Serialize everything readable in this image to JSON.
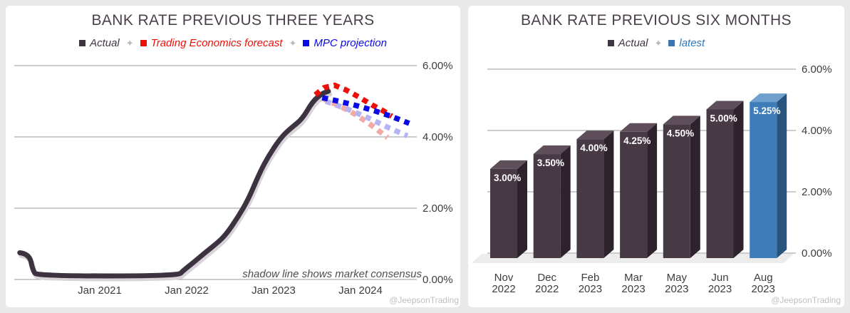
{
  "left_panel": {
    "title": "BANK RATE PREVIOUS THREE YEARS",
    "legend": [
      {
        "label": "Actual",
        "marker_color": "#3f3542",
        "text_color": "#3f3542"
      },
      {
        "label": "Trading Economics forecast",
        "marker_color": "#ee1008",
        "text_color": "#ee1008"
      },
      {
        "label": "MPC projection",
        "marker_color": "#0a0ae6",
        "text_color": "#0a0ae6"
      }
    ],
    "annotation": "shadow line shows market consensus",
    "watermark": "@JeepsonTrading"
  },
  "right_panel": {
    "title": "BANK RATE PREVIOUS SIX MONTHS",
    "legend": [
      {
        "label": "Actual",
        "marker_color": "#3f3542",
        "text_color": "#3f3542"
      },
      {
        "label": "latest",
        "marker_color": "#3d76ae",
        "text_color": "#2e79bb"
      }
    ],
    "watermark": "@JeepsonTrading"
  },
  "chart_data": [
    {
      "type": "line",
      "title": "BANK RATE PREVIOUS THREE YEARS",
      "xlabel": "",
      "ylabel": "",
      "xlim": [
        2020.05,
        2024.8
      ],
      "ylim": [
        0,
        6.5
      ],
      "grid": true,
      "y_ticks": [
        {
          "v": 0,
          "label": "0.00%"
        },
        {
          "v": 2,
          "label": "2.00%"
        },
        {
          "v": 4,
          "label": "4.00%"
        },
        {
          "v": 6,
          "label": "6.00%"
        }
      ],
      "x_ticks": [
        {
          "t": 2021.0,
          "label": "Jan 2021"
        },
        {
          "t": 2022.0,
          "label": "Jan 2022"
        },
        {
          "t": 2023.0,
          "label": "Jan 2023"
        },
        {
          "t": 2024.0,
          "label": "Jan 2024"
        }
      ],
      "series": [
        {
          "name": "Actual shadow (market consensus)",
          "style": "solid",
          "color": "#d8d3d8",
          "points": [
            [
              2020.08,
              0.75
            ],
            [
              2020.19,
              0.72
            ],
            [
              2020.23,
              0.25
            ],
            [
              2020.28,
              0.1
            ],
            [
              2021.9,
              0.1
            ],
            [
              2021.96,
              0.25
            ],
            [
              2022.09,
              0.5
            ],
            [
              2022.21,
              0.75
            ],
            [
              2022.34,
              1.0
            ],
            [
              2022.45,
              1.25
            ],
            [
              2022.59,
              1.75
            ],
            [
              2022.71,
              2.25
            ],
            [
              2022.84,
              3.0
            ],
            [
              2022.95,
              3.5
            ],
            [
              2023.09,
              4.0
            ],
            [
              2023.2,
              4.25
            ],
            [
              2023.33,
              4.5
            ],
            [
              2023.45,
              5.0
            ],
            [
              2023.56,
              5.22
            ],
            [
              2023.63,
              5.28
            ]
          ]
        },
        {
          "name": "Actual",
          "style": "solid",
          "color": "#3d3240",
          "points": [
            [
              2020.08,
              0.75
            ],
            [
              2020.19,
              0.72
            ],
            [
              2020.23,
              0.25
            ],
            [
              2020.28,
              0.1
            ],
            [
              2021.9,
              0.1
            ],
            [
              2021.96,
              0.25
            ],
            [
              2022.09,
              0.5
            ],
            [
              2022.21,
              0.75
            ],
            [
              2022.34,
              1.0
            ],
            [
              2022.45,
              1.25
            ],
            [
              2022.59,
              1.75
            ],
            [
              2022.71,
              2.25
            ],
            [
              2022.84,
              3.0
            ],
            [
              2022.95,
              3.5
            ],
            [
              2023.09,
              4.0
            ],
            [
              2023.2,
              4.25
            ],
            [
              2023.33,
              4.5
            ],
            [
              2023.45,
              5.0
            ],
            [
              2023.56,
              5.22
            ],
            [
              2023.63,
              5.28
            ]
          ]
        },
        {
          "name": "Trading Economics forecast shadow (market consensus)",
          "style": "dashed",
          "color": "#f3aaa6",
          "points": [
            [
              2023.56,
              5.08
            ],
            [
              2023.75,
              4.88
            ],
            [
              2023.95,
              4.62
            ],
            [
              2024.13,
              4.32
            ],
            [
              2024.31,
              3.98
            ]
          ]
        },
        {
          "name": "MPC projection shadow (market consensus)",
          "style": "dashed",
          "color": "#b5b5f3",
          "points": [
            [
              2023.6,
              5.0
            ],
            [
              2023.85,
              4.78
            ],
            [
              2024.1,
              4.52
            ],
            [
              2024.33,
              4.25
            ],
            [
              2024.54,
              4.03
            ]
          ]
        },
        {
          "name": "Trading Economics forecast",
          "style": "dashed",
          "color": "#ee1008",
          "points": [
            [
              2023.48,
              5.18
            ],
            [
              2023.58,
              5.38
            ],
            [
              2023.7,
              5.45
            ],
            [
              2023.83,
              5.32
            ],
            [
              2023.98,
              5.12
            ],
            [
              2024.13,
              4.9
            ],
            [
              2024.27,
              4.72
            ],
            [
              2024.36,
              4.58
            ]
          ]
        },
        {
          "name": "MPC projection",
          "style": "dashed",
          "color": "#0a0ae6",
          "points": [
            [
              2023.56,
              5.1
            ],
            [
              2023.75,
              5.0
            ],
            [
              2023.95,
              4.88
            ],
            [
              2024.15,
              4.74
            ],
            [
              2024.35,
              4.58
            ],
            [
              2024.56,
              4.38
            ]
          ]
        }
      ],
      "annotation": "shadow line shows market consensus",
      "legend_position": "top"
    },
    {
      "type": "bar",
      "title": "BANK RATE PREVIOUS SIX MONTHS",
      "xlabel": "",
      "ylabel": "",
      "ylim": [
        0,
        6.5
      ],
      "grid": true,
      "y_ticks": [
        {
          "v": 0,
          "label": "0.00%"
        },
        {
          "v": 2,
          "label": "2.00%"
        },
        {
          "v": 4,
          "label": "4.00%"
        },
        {
          "v": 6,
          "label": "6.00%"
        }
      ],
      "categories": [
        [
          "Nov",
          "2022"
        ],
        [
          "Dec",
          "2022"
        ],
        [
          "Feb",
          "2023"
        ],
        [
          "Mar",
          "2023"
        ],
        [
          "May",
          "2023"
        ],
        [
          "Jun",
          "2023"
        ],
        [
          "Aug",
          "2023"
        ]
      ],
      "values": [
        3.0,
        3.5,
        4.0,
        4.25,
        4.5,
        5.0,
        5.25
      ],
      "bar_labels": [
        "3.00%",
        "3.50%",
        "4.00%",
        "4.25%",
        "4.50%",
        "5.00%",
        "5.25%"
      ],
      "highlight_index": 6,
      "bar_colors": {
        "actual": {
          "front": "#473a45",
          "top": "#5e4f5b",
          "side": "#2e232d"
        },
        "latest": {
          "front": "#3e7cba",
          "top": "#6fa0cd",
          "side": "#27547f"
        }
      },
      "legend_position": "top"
    }
  ]
}
